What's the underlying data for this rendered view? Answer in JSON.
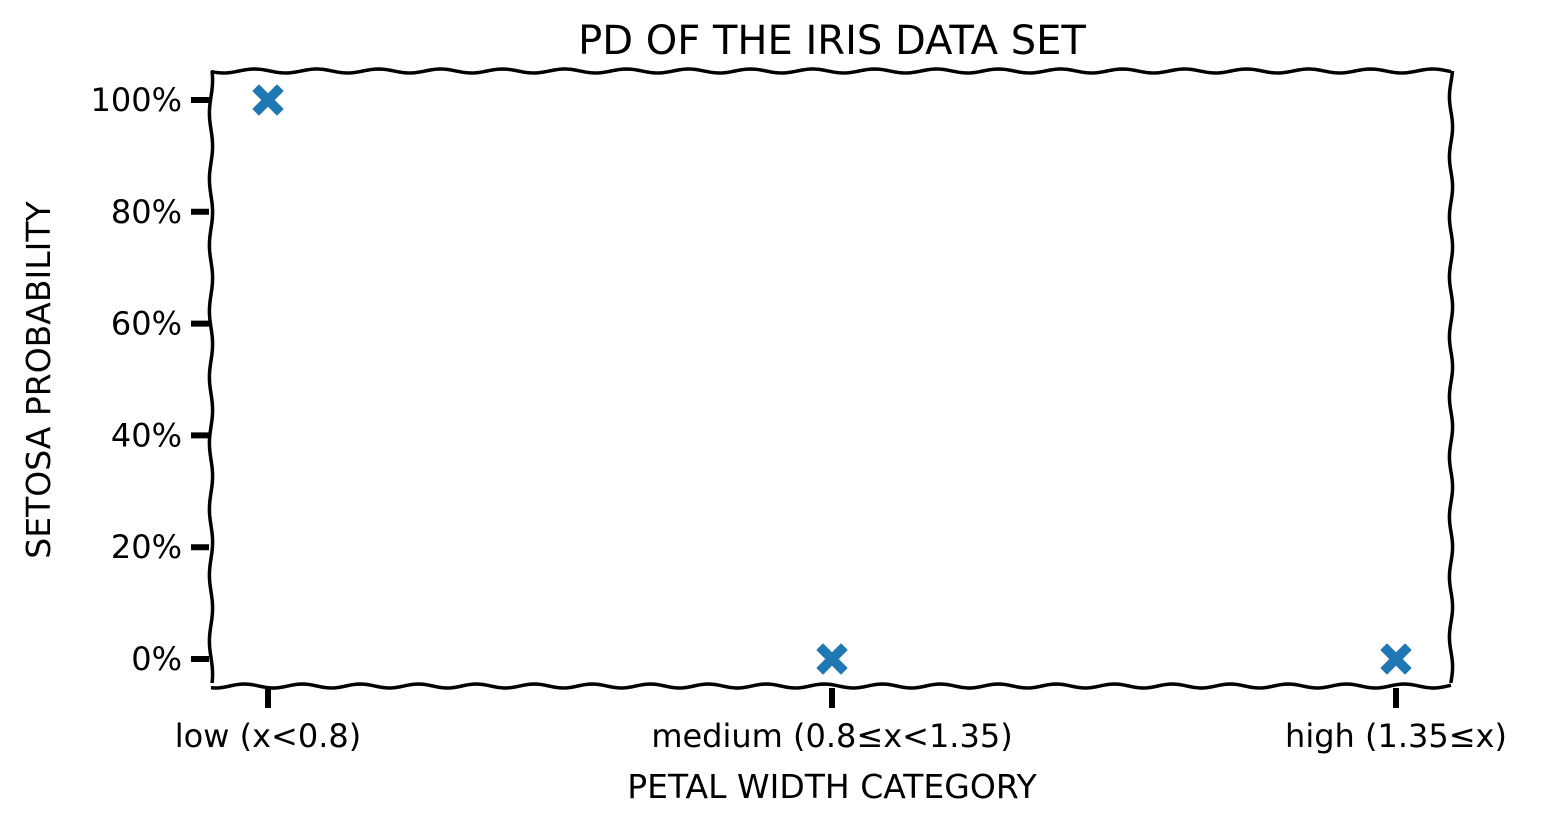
{
  "chart_data": {
    "type": "scatter",
    "title": "PD OF THE IRIS DATA SET",
    "xlabel": "PETAL WIDTH CATEGORY",
    "ylabel": "SETOSA PROBABILITY",
    "categories": [
      "low (x<0.8)",
      "medium (0.8≤x<1.35)",
      "high (1.35≤x)"
    ],
    "values": [
      1.0,
      0.0,
      0.0
    ],
    "yticks": [
      0,
      0.2,
      0.4,
      0.6,
      0.8,
      1.0
    ],
    "ytick_labels": [
      "0%",
      "20%",
      "40%",
      "60%",
      "80%",
      "100%"
    ],
    "ylim": [
      -0.05,
      1.05
    ],
    "marker": "filled-x",
    "marker_color": "#1f77b4",
    "grid": false,
    "style": "xkcd"
  }
}
